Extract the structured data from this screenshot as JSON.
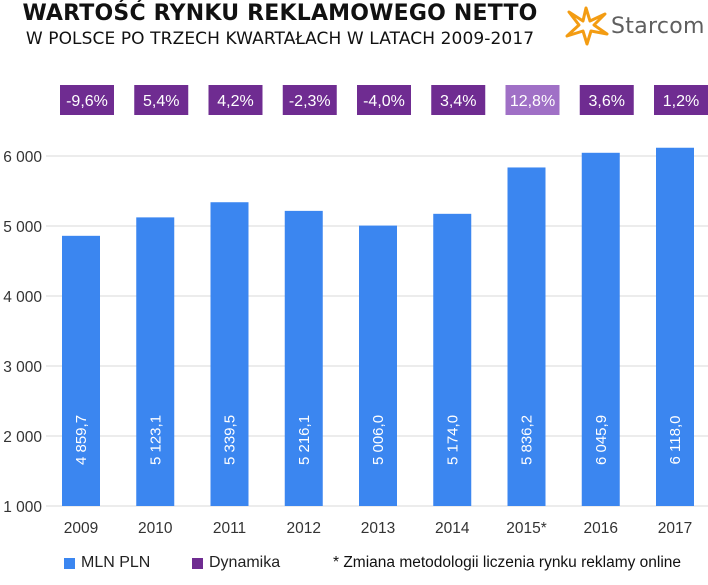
{
  "title": "WARTOŚĆ RYNKU REKLAMOWEGO NETTO",
  "subtitle": "W POLSCE PO TRZECH KWARTAŁACH  W LATACH 2009-2017",
  "logo_text": "Starcom",
  "colors": {
    "bar": "#3b86f0",
    "dynamika": "#6f2c91",
    "dynamika_highlight": "#a070c6",
    "logo_star": "#f39c12"
  },
  "chart_data": {
    "type": "bar",
    "categories": [
      "2009",
      "2010",
      "2011",
      "2012",
      "2013",
      "2014",
      "2015*",
      "2016",
      "2017"
    ],
    "series": [
      {
        "name": "MLN PLN",
        "values": [
          4859.7,
          5123.1,
          5339.5,
          5216.1,
          5006.0,
          5174.0,
          5836.2,
          6045.9,
          6118.0
        ],
        "labels": [
          "4 859,7",
          "5 123,1",
          "5 339,5",
          "5 216,1",
          "5 006,0",
          "5 174,0",
          "5 836,2",
          "6 045,9",
          "6 118,0"
        ]
      },
      {
        "name": "Dynamika",
        "values": [
          -9.6,
          5.4,
          4.2,
          -2.3,
          -4.0,
          3.4,
          12.8,
          3.6,
          1.2
        ],
        "labels": [
          "-9,6%",
          "5,4%",
          "4,2%",
          "-2,3%",
          "-4,0%",
          "3,4%",
          "12,8%",
          "3,6%",
          "1,2%"
        ],
        "highlight_index": 6
      }
    ],
    "yticks": [
      1000,
      2000,
      3000,
      4000,
      5000,
      6000
    ],
    "ytick_labels": [
      "1 000",
      "2 000",
      "3 000",
      "4 000",
      "5 000",
      "6 000"
    ],
    "ylim": [
      1000,
      6300
    ],
    "xlabel": "",
    "ylabel": "",
    "legend": [
      "MLN PLN",
      "Dynamika"
    ],
    "legend_position": "bottom-left"
  },
  "footnote": "* Zmiana metodologii liczenia rynku reklamy online"
}
